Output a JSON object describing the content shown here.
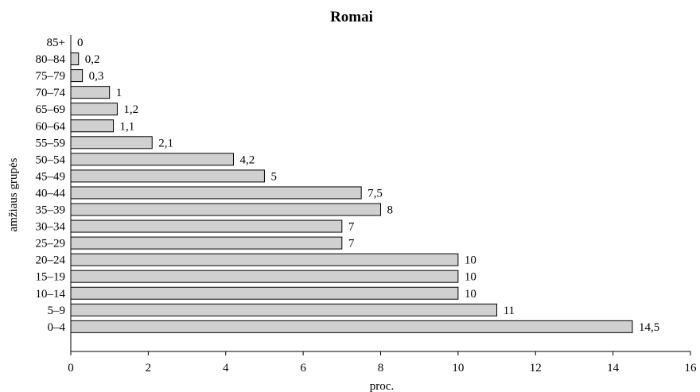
{
  "chart_data": {
    "type": "bar",
    "orientation": "horizontal",
    "title": "Romai",
    "xlabel": "proc.",
    "ylabel": "amžiaus grupės",
    "xlim": [
      0,
      16
    ],
    "xticks": [
      0,
      2,
      4,
      6,
      8,
      10,
      12,
      14,
      16
    ],
    "grid": false,
    "bar_color": "#d0d0d0",
    "categories": [
      "85+",
      "80–84",
      "75–79",
      "70–74",
      "65–69",
      "60–64",
      "55–59",
      "50–54",
      "45–49",
      "40–44",
      "35–39",
      "30–34",
      "25–29",
      "20–24",
      "15–19",
      "10–14",
      "5–9",
      "0–4"
    ],
    "values": [
      0,
      0.2,
      0.3,
      1,
      1.2,
      1.1,
      2.1,
      4.2,
      5,
      7.5,
      8,
      7,
      7,
      10,
      10,
      10,
      11,
      14.5
    ],
    "value_labels": [
      "0",
      "0,2",
      "0,3",
      "1",
      "1,2",
      "1,1",
      "2,1",
      "4,2",
      "5",
      "7,5",
      "8",
      "7",
      "7",
      "10",
      "10",
      "10",
      "11",
      "14,5"
    ]
  }
}
